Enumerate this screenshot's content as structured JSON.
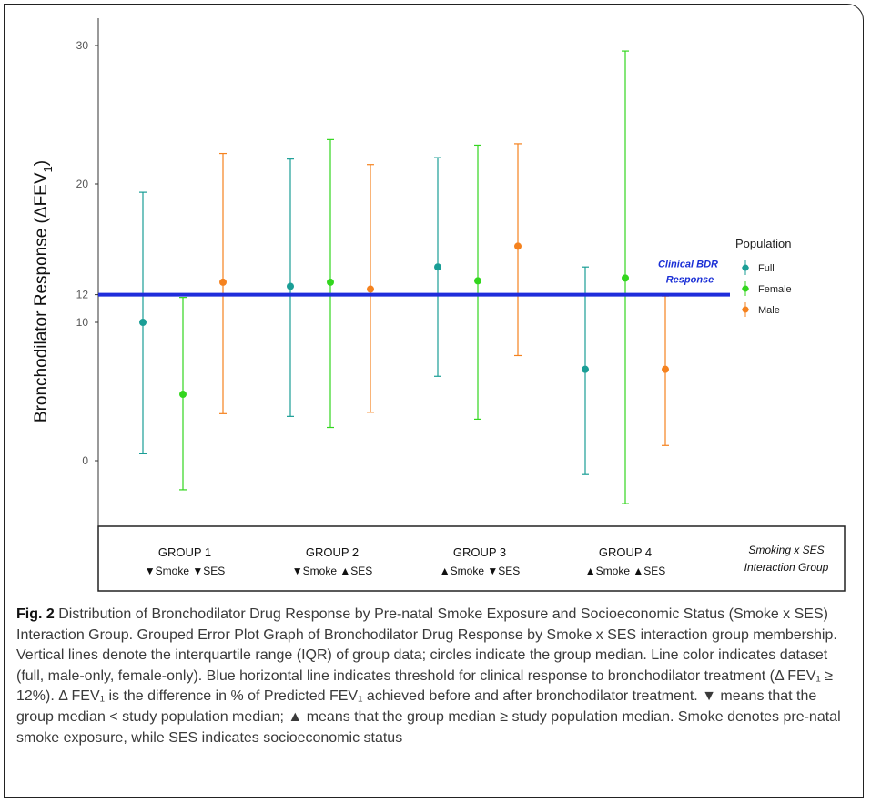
{
  "chart_data": {
    "type": "error-bar",
    "ylabel": "Bronchodilator Response (ΔFEV",
    "ylabel_sub": "1",
    "ylabel_end": ")",
    "ylim": [
      -4,
      31
    ],
    "y_ticks": [
      0,
      10,
      12,
      20,
      30
    ],
    "groups": [
      {
        "title": "GROUP 1",
        "subtitle": "▼Smoke ▼SES"
      },
      {
        "title": "GROUP 2",
        "subtitle": "▼Smoke ▲SES"
      },
      {
        "title": "GROUP 3",
        "subtitle": "▲Smoke ▼SES"
      },
      {
        "title": "GROUP 4",
        "subtitle": "▲Smoke ▲SES"
      }
    ],
    "group_axis_label_line1": "Smoking x SES",
    "group_axis_label_line2": "Interaction Group",
    "series": [
      {
        "name": "Full",
        "color": "#1a9e96",
        "median": [
          10.0,
          12.6,
          14.0,
          6.6
        ],
        "lower": [
          0.5,
          3.2,
          6.1,
          -1.0
        ],
        "upper": [
          19.4,
          21.8,
          21.9,
          14.0
        ]
      },
      {
        "name": "Female",
        "color": "#33d61e",
        "median": [
          4.8,
          12.9,
          13.0,
          13.2
        ],
        "lower": [
          -2.1,
          2.4,
          3.0,
          -3.1
        ],
        "upper": [
          11.8,
          23.2,
          22.8,
          29.6
        ]
      },
      {
        "name": "Male",
        "color": "#f5821e",
        "median": [
          12.9,
          12.4,
          15.5,
          6.6
        ],
        "lower": [
          3.4,
          3.5,
          7.6,
          1.1
        ],
        "upper": [
          22.2,
          21.4,
          22.9,
          11.9
        ]
      }
    ],
    "reference_line": {
      "value": 12,
      "color": "#1f2ddb",
      "label_line1": "Clinical BDR",
      "label_line2": "Response"
    },
    "legend": {
      "title": "Population",
      "placement": "right"
    }
  },
  "caption": {
    "fig_label": "Fig. 2",
    "text": " Distribution of Bronchodilator Drug Response by Pre-natal Smoke Exposure and Socioeconomic Status (Smoke x SES) Interaction Group. Grouped Error Plot Graph of Bronchodilator Drug Response by Smoke x SES interaction group membership. Vertical lines denote the interquartile range (IQR) of group data; circles indicate the group median. Line color indicates dataset (full, male-only, female-only). Blue horizontal line indicates threshold for clinical response to bronchodilator treatment (Δ FEV₁ ≥ 12%). Δ FEV₁ is the difference in % of Predicted FEV₁ achieved before and after bronchodilator treatment. ▼ means that the group median < study population median; ▲ means that the group median ≥ study population median. Smoke denotes pre-natal smoke exposure, while SES indicates socioeconomic status"
  }
}
